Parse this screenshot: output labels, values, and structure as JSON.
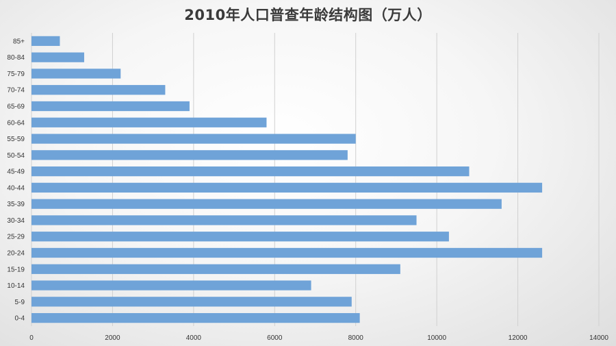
{
  "chart_data": {
    "type": "bar",
    "orientation": "horizontal",
    "title": "2010年人口普查年龄结构图（万人）",
    "categories": [
      "0-4",
      "5-9",
      "10-14",
      "15-19",
      "20-24",
      "25-29",
      "30-34",
      "35-39",
      "40-44",
      "45-49",
      "50-54",
      "55-59",
      "60-64",
      "65-69",
      "70-74",
      "75-79",
      "80-84",
      "85+"
    ],
    "values": [
      8100,
      7900,
      6900,
      9100,
      12600,
      10300,
      9500,
      11600,
      12600,
      10800,
      7800,
      8000,
      5800,
      3900,
      3300,
      2200,
      1300,
      700
    ],
    "xlim": [
      0,
      14000
    ],
    "x_ticks": [
      0,
      2000,
      4000,
      6000,
      8000,
      10000,
      12000,
      14000
    ],
    "x_tick_labels": [
      "0",
      "2000",
      "4000",
      "6000",
      "8000",
      "10000",
      "12000",
      "14000"
    ],
    "xlabel": "",
    "ylabel": "",
    "grid": "vertical",
    "legend": "none",
    "bar_color": "#6fa3d8"
  }
}
